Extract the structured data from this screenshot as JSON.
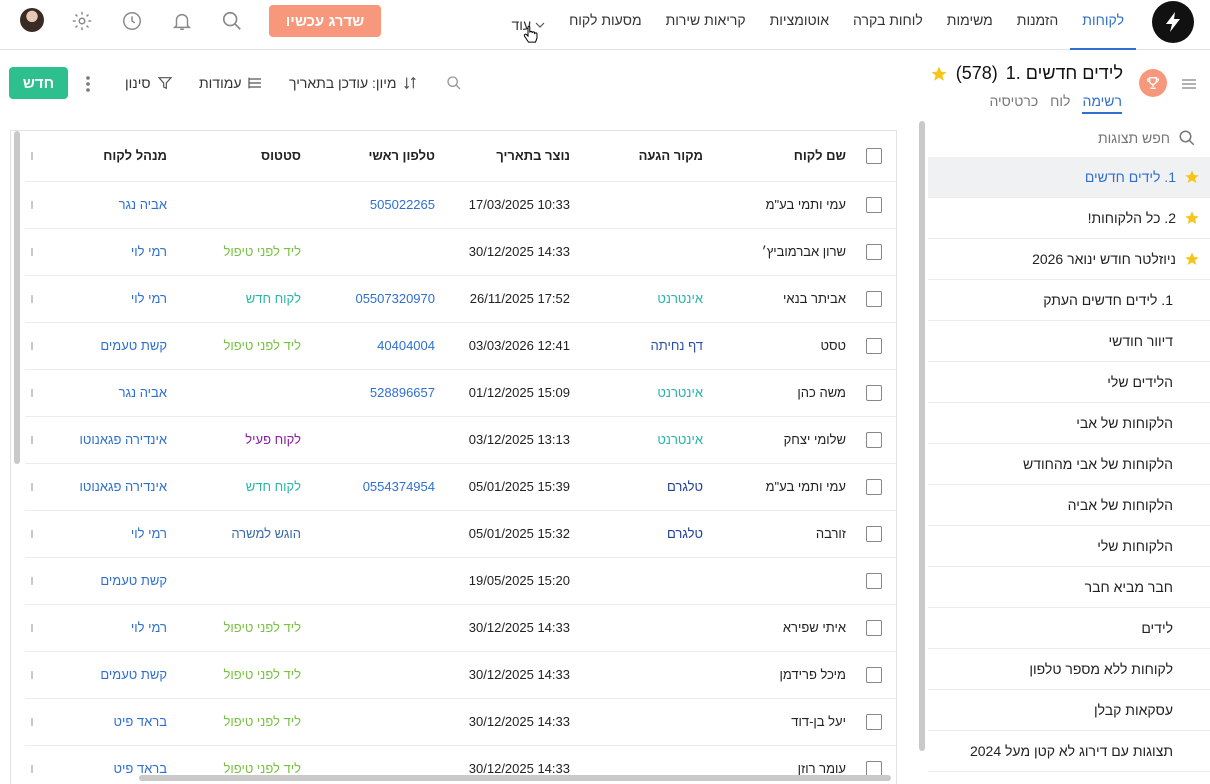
{
  "nav": {
    "tabs": [
      {
        "id": "customers",
        "label": "לקוחות",
        "active": true
      },
      {
        "id": "orders",
        "label": "הזמנות"
      },
      {
        "id": "tasks",
        "label": "משימות"
      },
      {
        "id": "dashboards",
        "label": "לוחות בקרה"
      },
      {
        "id": "automations",
        "label": "אוטומציות"
      },
      {
        "id": "tickets",
        "label": "קריאות שירות"
      },
      {
        "id": "journeys",
        "label": "מסעות לקוח"
      }
    ],
    "more_label": "עוד",
    "upgrade_label": "שדרג עכשיו",
    "icons": [
      "search-icon",
      "bell-icon",
      "clock-icon",
      "gear-icon"
    ]
  },
  "view": {
    "title": "1. לידים חדשים",
    "count": "(578)",
    "tabs": [
      {
        "label": "רשימה",
        "active": true
      },
      {
        "label": "לוח"
      },
      {
        "label": "כרטיסיה"
      }
    ]
  },
  "toolbar": {
    "sort_label": "מיון: עודכן בתאריך",
    "columns_label": "עמודות",
    "filter_label": "סינון",
    "new_label": "חדש"
  },
  "sidebar": {
    "search_placeholder": "חפש תצוגות",
    "items": [
      {
        "label": "1. לידים חדשים",
        "starred": true,
        "active": true
      },
      {
        "label": "2. כל הלקוחות!",
        "starred": true
      },
      {
        "label": "ניוזלטר חודש ינואר 2026",
        "starred": true
      },
      {
        "label": "1. לידים חדשים העתק"
      },
      {
        "label": "דיוור חודשי"
      },
      {
        "label": "הלידים שלי"
      },
      {
        "label": "הלקוחות של אבי"
      },
      {
        "label": "הלקוחות של אבי מהחודש"
      },
      {
        "label": "הלקוחות של אביה"
      },
      {
        "label": "הלקוחות שלי"
      },
      {
        "label": "חבר מביא חבר"
      },
      {
        "label": "לידים"
      },
      {
        "label": "לקוחות ללא מספר טלפון"
      },
      {
        "label": "עסקאות קבלן"
      },
      {
        "label": "תצוגות עם דירוג לא קטן מעל 2024"
      }
    ]
  },
  "table": {
    "headers": {
      "name": "שם לקוח",
      "source": "מקור הגעה",
      "created": "נוצר בתאריך",
      "phone": "טלפון ראשי",
      "status": "סטטוס",
      "manager": "מנהל לקוח"
    },
    "rows": [
      {
        "name": "עמי ותמי בע\"מ",
        "source": "",
        "src_class": "",
        "created": "17/03/2025 10:33",
        "phone": "505022265",
        "status": "",
        "st_class": "",
        "manager": "אביה נגר"
      },
      {
        "name": "שרון אברמוביץ׳",
        "source": "",
        "src_class": "",
        "created": "30/12/2025 14:33",
        "phone": "",
        "status": "ליד לפני טיפול",
        "st_class": "st-preleads",
        "manager": "רמי לוי"
      },
      {
        "name": "אביתר בנאי",
        "source": "אינטרנט",
        "src_class": "src-internet",
        "created": "26/11/2025 17:52",
        "phone": "05507320970",
        "status": "לקוח חדש",
        "st_class": "st-newcust",
        "manager": "רמי לוי"
      },
      {
        "name": "טסט",
        "source": "דף נחיתה",
        "src_class": "src-landing",
        "created": "03/03/2026 12:41",
        "phone": "40404004",
        "status": "ליד לפני טיפול",
        "st_class": "st-preleads",
        "manager": "קשת טעמים"
      },
      {
        "name": "משה כהן",
        "source": "אינטרנט",
        "src_class": "src-internet",
        "created": "01/12/2025 15:09",
        "phone": "528896657",
        "status": "",
        "st_class": "",
        "manager": "אביה נגר"
      },
      {
        "name": "שלומי יצחק",
        "source": "אינטרנט",
        "src_class": "src-internet",
        "created": "03/12/2025 13:13",
        "phone": "",
        "status": "לקוח פעיל",
        "st_class": "st-active",
        "manager": "אינדירה פגאנוטו"
      },
      {
        "name": "עמי ותמי בע\"מ",
        "source": "טלגרם",
        "src_class": "src-telegram",
        "created": "05/01/2025 15:39",
        "phone": "0554374954",
        "status": "לקוח חדש",
        "st_class": "st-newcust",
        "manager": "אינדירה פגאנוטו"
      },
      {
        "name": "זורבה",
        "source": "טלגרם",
        "src_class": "src-telegram",
        "created": "05/01/2025 15:32",
        "phone": "",
        "status": "הוגש למשרה",
        "st_class": "st-offer",
        "manager": "רמי לוי"
      },
      {
        "name": "",
        "source": "",
        "src_class": "",
        "created": "19/05/2025 15:20",
        "phone": "",
        "status": "",
        "st_class": "",
        "manager": "קשת טעמים"
      },
      {
        "name": "איתי שפירא",
        "source": "",
        "src_class": "",
        "created": "30/12/2025 14:33",
        "phone": "",
        "status": "ליד לפני טיפול",
        "st_class": "st-preleads",
        "manager": "רמי לוי"
      },
      {
        "name": "מיכל פרידמן",
        "source": "",
        "src_class": "",
        "created": "30/12/2025 14:33",
        "phone": "",
        "status": "ליד לפני טיפול",
        "st_class": "st-preleads",
        "manager": "קשת טעמים"
      },
      {
        "name": "יעל בן-דוד",
        "source": "",
        "src_class": "",
        "created": "30/12/2025 14:33",
        "phone": "",
        "status": "ליד לפני טיפול",
        "st_class": "st-preleads",
        "manager": "בראד פיט"
      },
      {
        "name": "עומר רוזן",
        "source": "",
        "src_class": "",
        "created": "30/12/2025 14:33",
        "phone": "",
        "status": "ליד לפני טיפול",
        "st_class": "st-preleads",
        "manager": "בראד פיט"
      }
    ]
  },
  "colors": {
    "accent": "#2f6fd1",
    "upgrade": "#f7987c",
    "new_button": "#2dbf8d",
    "star": "#f5c518"
  }
}
